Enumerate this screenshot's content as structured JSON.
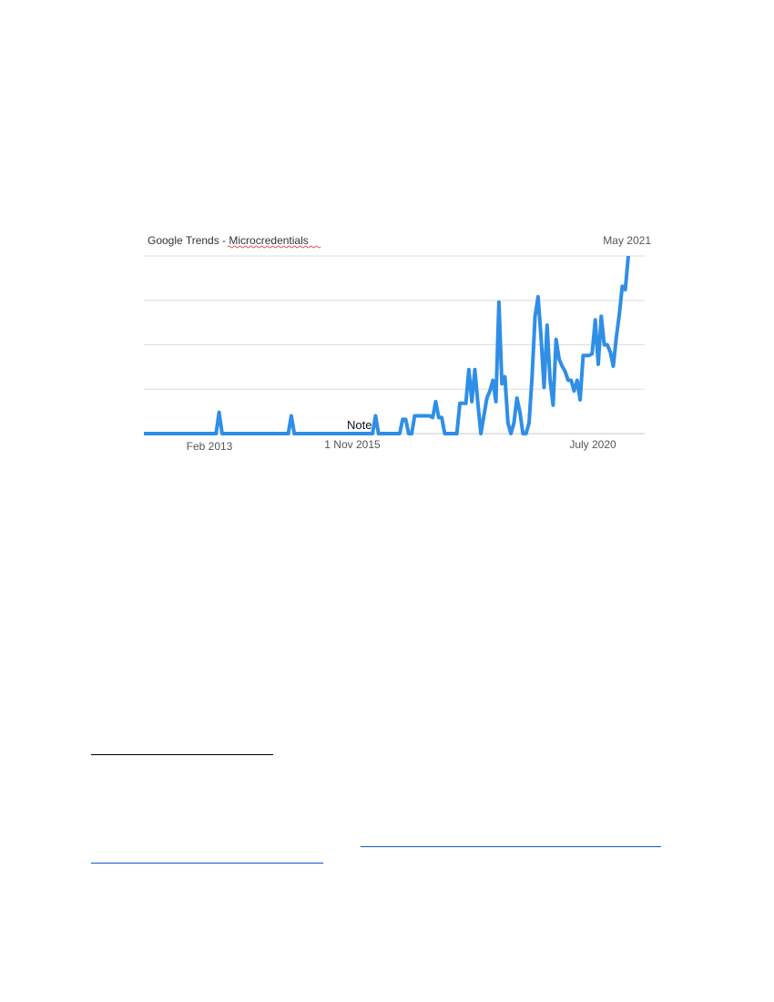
{
  "chart_data": {
    "type": "line",
    "title": "Google Trends - Microcredentials",
    "title_prefix": "Google Trends - ",
    "title_term": "Microcredentials",
    "date_label": "May 2021",
    "annotation": "Note",
    "x_tick_labels": [
      "Feb 2013",
      "1 Nov 2015",
      "July 2020"
    ],
    "xlabel": "",
    "ylabel": "",
    "ylim": [
      0,
      100
    ],
    "grid": true,
    "line_color": "#2f8ee6",
    "grid_color": "#dddddd",
    "values": [
      0,
      0,
      0,
      0,
      0,
      0,
      0,
      0,
      0,
      0,
      0,
      0,
      0,
      0,
      0,
      0,
      0,
      0,
      0,
      0,
      0,
      0,
      0,
      0,
      0,
      12,
      0,
      0,
      0,
      0,
      0,
      0,
      0,
      0,
      0,
      0,
      0,
      0,
      0,
      0,
      0,
      0,
      0,
      0,
      0,
      0,
      0,
      0,
      0,
      10,
      0,
      0,
      0,
      0,
      0,
      0,
      0,
      0,
      0,
      0,
      0,
      0,
      0,
      0,
      0,
      0,
      0,
      0,
      0,
      0,
      0,
      0,
      0,
      0,
      0,
      0,
      0,
      10,
      0,
      0,
      0,
      0,
      0,
      0,
      0,
      0,
      8,
      8,
      0,
      0,
      10,
      10,
      10,
      10,
      10,
      10,
      9,
      18,
      9,
      9,
      0,
      0,
      0,
      0,
      0,
      17,
      17,
      17,
      36,
      18,
      36,
      17,
      0,
      10,
      20,
      24,
      30,
      18,
      74,
      28,
      32,
      6,
      0,
      6,
      20,
      12,
      0,
      0,
      6,
      32,
      66,
      77,
      54,
      26,
      61,
      30,
      16,
      53,
      42,
      38,
      35,
      30,
      30,
      24,
      30,
      19,
      44,
      44,
      44,
      45,
      64,
      39,
      66,
      50,
      50,
      46,
      38,
      54,
      67,
      83,
      81,
      100
    ]
  }
}
